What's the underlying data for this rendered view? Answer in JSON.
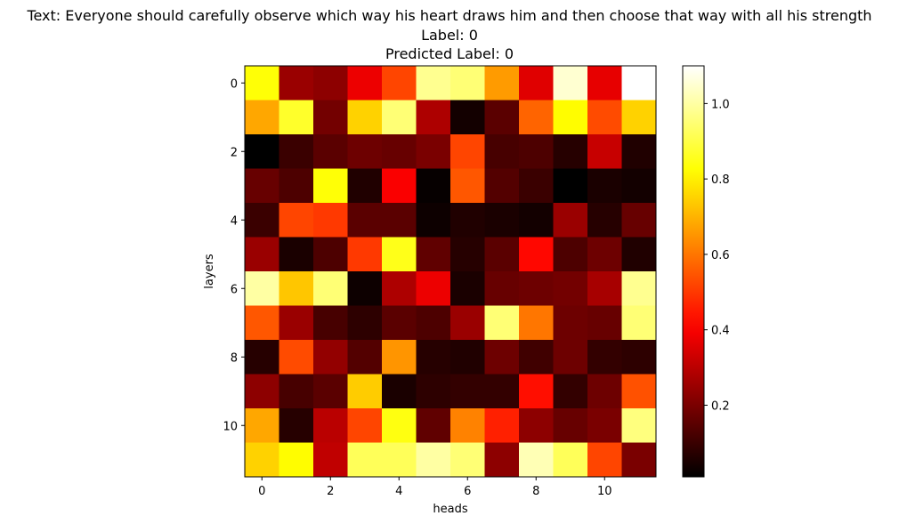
{
  "chart_data": {
    "type": "heatmap",
    "title_lines": [
      "Text: Everyone should carefully observe which way his heart draws him and then choose that way with all his strength",
      "Label: 0",
      "Predicted Label: 0"
    ],
    "xlabel": "heads",
    "ylabel": "layers",
    "x_ticks": [
      0,
      2,
      4,
      6,
      8,
      10
    ],
    "y_ticks": [
      0,
      2,
      4,
      6,
      8,
      10
    ],
    "colormap": "hot",
    "colorbar": {
      "vmin": 0.01,
      "vmax": 1.1,
      "ticks": [
        0.2,
        0.4,
        0.6,
        0.8,
        1.0
      ],
      "tick_labels": [
        "0.2",
        "0.4",
        "0.6",
        "0.8",
        "1.0"
      ]
    },
    "values": [
      [
        0.83,
        0.25,
        0.23,
        0.38,
        0.52,
        0.98,
        0.95,
        0.66,
        0.36,
        1.05,
        0.37,
        1.1
      ],
      [
        0.68,
        0.87,
        0.19,
        0.75,
        0.95,
        0.28,
        0.04,
        0.15,
        0.57,
        0.82,
        0.53,
        0.75
      ],
      [
        0.01,
        0.1,
        0.15,
        0.18,
        0.17,
        0.2,
        0.52,
        0.12,
        0.13,
        0.07,
        0.32,
        0.06
      ],
      [
        0.17,
        0.13,
        0.83,
        0.06,
        0.4,
        0.02,
        0.55,
        0.14,
        0.1,
        0.01,
        0.05,
        0.04
      ],
      [
        0.1,
        0.52,
        0.5,
        0.15,
        0.15,
        0.03,
        0.06,
        0.05,
        0.04,
        0.25,
        0.07,
        0.17
      ],
      [
        0.25,
        0.05,
        0.13,
        0.5,
        0.85,
        0.16,
        0.07,
        0.15,
        0.42,
        0.13,
        0.18,
        0.06
      ],
      [
        1.0,
        0.73,
        0.95,
        0.03,
        0.28,
        0.38,
        0.05,
        0.17,
        0.18,
        0.19,
        0.27,
        0.98
      ],
      [
        0.55,
        0.25,
        0.12,
        0.08,
        0.15,
        0.13,
        0.25,
        0.95,
        0.6,
        0.18,
        0.17,
        0.95
      ],
      [
        0.07,
        0.53,
        0.24,
        0.14,
        0.65,
        0.07,
        0.06,
        0.18,
        0.11,
        0.18,
        0.09,
        0.08
      ],
      [
        0.23,
        0.12,
        0.15,
        0.74,
        0.05,
        0.08,
        0.09,
        0.09,
        0.43,
        0.09,
        0.18,
        0.54
      ],
      [
        0.68,
        0.07,
        0.3,
        0.52,
        0.84,
        0.16,
        0.62,
        0.46,
        0.23,
        0.17,
        0.2,
        0.96
      ],
      [
        0.75,
        0.82,
        0.31,
        0.92,
        0.92,
        1.0,
        0.95,
        0.23,
        1.02,
        0.92,
        0.52,
        0.2
      ]
    ]
  }
}
